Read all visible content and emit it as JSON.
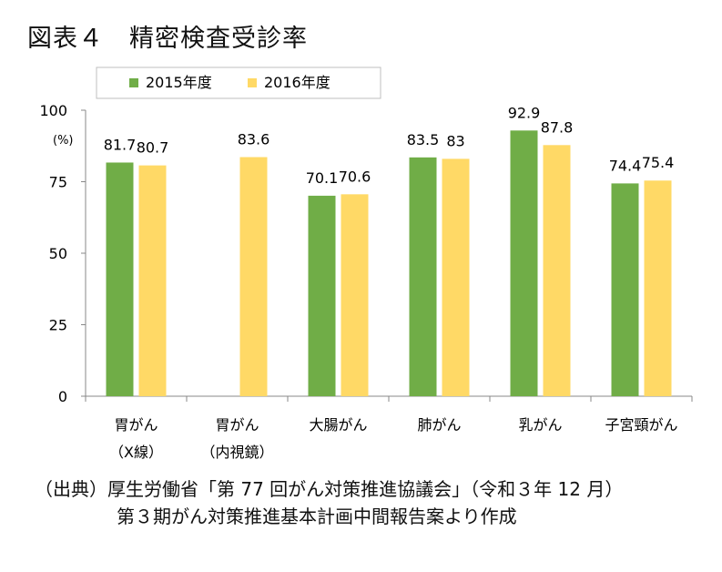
{
  "title": "図表４　精密検査受診率",
  "source": {
    "line1": "（出典）厚生労働省「第 77 回がん対策推進協議会」（令和３年 12 月）",
    "line2": "第３期がん対策推進基本計画中間報告案より作成"
  },
  "colors": {
    "s2015": "#70AD47",
    "s2016": "#FFD966",
    "axis": "#888888",
    "grid": "#bfbfbf"
  },
  "chart_data": {
    "type": "bar",
    "categories": [
      {
        "line1": "胃がん",
        "line2": "（X線）"
      },
      {
        "line1": "胃がん",
        "line2": "（内視鏡）"
      },
      {
        "line1": "大腸がん",
        "line2": ""
      },
      {
        "line1": "肺がん",
        "line2": ""
      },
      {
        "line1": "乳がん",
        "line2": ""
      },
      {
        "line1": "子宮頸がん",
        "line2": ""
      }
    ],
    "series": [
      {
        "name": "2015年度",
        "values": [
          81.7,
          null,
          70.1,
          83.5,
          92.9,
          74.4
        ],
        "labels": [
          "81.7",
          "",
          "70.1",
          "83.5",
          "92.9",
          "74.4"
        ]
      },
      {
        "name": "2016年度",
        "values": [
          80.7,
          83.6,
          70.6,
          83,
          87.8,
          75.4
        ],
        "labels": [
          "80.7",
          "83.6",
          "70.6",
          "83",
          "87.8",
          "75.4"
        ]
      }
    ],
    "ylim": [
      0,
      100
    ],
    "yticks": [
      0,
      25,
      50,
      75,
      100
    ],
    "ylabel": "(%)",
    "legend": "top"
  }
}
